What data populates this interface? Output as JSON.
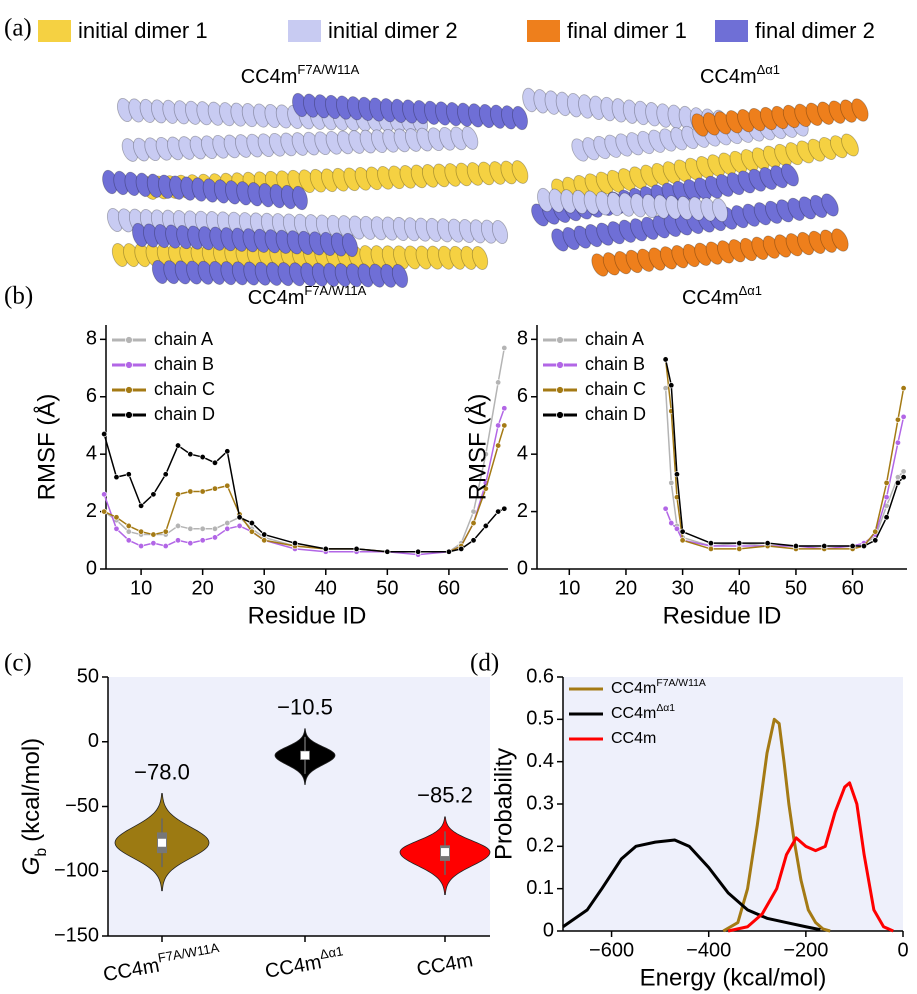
{
  "panel_labels": [
    "(a)",
    "(b)",
    "(c)",
    "(d)"
  ],
  "legend": [
    {
      "label": "initial dimer 1",
      "color": "#f5d142"
    },
    {
      "label": "initial dimer 2",
      "color": "#c8cbf2"
    },
    {
      "label": "final dimer 1",
      "color": "#ee7f1c"
    },
    {
      "label": "final dimer 2",
      "color": "#6f6fd6"
    }
  ],
  "structures": [
    {
      "title": "CC4m",
      "title_sup": "F7A/W11A"
    },
    {
      "title": "CC4m",
      "title_sup": "Δα1"
    }
  ],
  "chart_data": [
    {
      "type": "line",
      "title": "CC4m",
      "title_sup": "F7A/W11A",
      "xlabel": "Residue ID",
      "ylabel": "RMSF (Å)",
      "xlim": [
        4.3,
        69.6
      ],
      "ylim": [
        0,
        8.5
      ],
      "xticks": [
        10,
        20,
        30,
        40,
        50,
        60
      ],
      "yticks": [
        0,
        2,
        4,
        6,
        8
      ],
      "markers": true,
      "legend": "upper left",
      "x": [
        4,
        6,
        8,
        10,
        12,
        14,
        16,
        18,
        20,
        22,
        24,
        26,
        28,
        30,
        35,
        40,
        45,
        50,
        55,
        60,
        62,
        64,
        66,
        68,
        69
      ],
      "series": [
        {
          "name": "chain A",
          "color": "#b4b4b4",
          "values": [
            2.0,
            1.7,
            1.3,
            1.2,
            1.2,
            1.2,
            1.5,
            1.4,
            1.4,
            1.4,
            1.6,
            1.8,
            1.4,
            1.1,
            0.8,
            0.7,
            0.7,
            0.6,
            0.6,
            0.6,
            0.9,
            2.0,
            4.0,
            6.5,
            7.7
          ]
        },
        {
          "name": "chain B",
          "color": "#b266e6",
          "values": [
            2.6,
            1.4,
            1.0,
            0.8,
            0.9,
            0.8,
            1.0,
            0.9,
            1.0,
            1.1,
            1.4,
            1.5,
            1.3,
            1.0,
            0.7,
            0.6,
            0.6,
            0.6,
            0.5,
            0.6,
            0.8,
            1.6,
            3.0,
            5.0,
            5.6
          ]
        },
        {
          "name": "chain C",
          "color": "#a47a14",
          "values": [
            2.0,
            1.8,
            1.5,
            1.3,
            1.2,
            1.3,
            2.6,
            2.7,
            2.7,
            2.8,
            2.9,
            1.9,
            1.3,
            1.0,
            0.8,
            0.7,
            0.7,
            0.6,
            0.6,
            0.6,
            0.8,
            1.6,
            2.8,
            4.3,
            5.0
          ]
        },
        {
          "name": "chain D",
          "color": "#000000",
          "values": [
            4.7,
            3.2,
            3.3,
            2.2,
            2.6,
            3.3,
            4.3,
            4.0,
            3.9,
            3.7,
            4.1,
            1.8,
            1.6,
            1.2,
            0.9,
            0.7,
            0.7,
            0.6,
            0.6,
            0.6,
            0.7,
            1.0,
            1.5,
            2.0,
            2.1
          ]
        }
      ]
    },
    {
      "type": "line",
      "title": "CC4m",
      "title_sup": "Δα1",
      "xlabel": "Residue ID",
      "ylabel": "RMSF (Å)",
      "xlim": [
        4.3,
        69.6
      ],
      "ylim": [
        0,
        8.5
      ],
      "xticks": [
        10,
        20,
        30,
        40,
        50,
        60
      ],
      "yticks": [
        0,
        2,
        4,
        6,
        8
      ],
      "markers": true,
      "legend": "upper left",
      "x": [
        27,
        28,
        29,
        30,
        35,
        40,
        45,
        50,
        55,
        60,
        62,
        64,
        66,
        68,
        69
      ],
      "series": [
        {
          "name": "chain A",
          "color": "#b4b4b4",
          "values": [
            6.3,
            3.0,
            1.5,
            1.1,
            0.8,
            0.9,
            0.8,
            0.8,
            0.8,
            0.8,
            0.9,
            1.1,
            2.2,
            3.2,
            3.4
          ]
        },
        {
          "name": "chain B",
          "color": "#b266e6",
          "values": [
            2.1,
            1.6,
            1.4,
            1.0,
            0.8,
            0.8,
            0.8,
            0.8,
            0.7,
            0.8,
            0.9,
            1.2,
            2.5,
            4.4,
            5.3
          ]
        },
        {
          "name": "chain C",
          "color": "#a47a14",
          "values": [
            7.3,
            5.5,
            2.5,
            1.0,
            0.7,
            0.7,
            0.8,
            0.7,
            0.7,
            0.7,
            0.8,
            1.3,
            3.0,
            5.2,
            6.3
          ]
        },
        {
          "name": "chain D",
          "color": "#000000",
          "values": [
            7.3,
            6.4,
            3.3,
            1.3,
            0.9,
            0.9,
            0.9,
            0.8,
            0.8,
            0.8,
            0.8,
            1.0,
            1.8,
            3.0,
            3.2
          ]
        }
      ]
    },
    {
      "type": "violin",
      "ylabel": {
        "text": "G",
        "sub": "b",
        "unit": "(kcal/mol)"
      },
      "ylim": [
        -150,
        50
      ],
      "yticks": [
        {
          "value": -150,
          "label": "−150"
        },
        {
          "value": -100,
          "label": "−100"
        },
        {
          "value": -50,
          "label": "−50"
        },
        0,
        50
      ],
      "background": "#eef0fb",
      "categories": [
        {
          "text": "CC4m",
          "sup": "F7A/W11A"
        },
        {
          "text": "CC4m",
          "sup": "Δα1"
        },
        {
          "text": "CC4m"
        }
      ],
      "colors": [
        "#9c7a12",
        "#000000",
        "#ff0000"
      ],
      "values": [
        -78.0,
        -10.5,
        -85.2
      ],
      "value_labels": [
        "−78.0",
        "−10.5",
        "−85.2"
      ],
      "min": [
        -115,
        -33,
        -118
      ],
      "max": [
        -40,
        10,
        -58
      ],
      "q1": [
        -86,
        -14,
        -92
      ],
      "q3": [
        -70,
        -7,
        -80
      ]
    },
    {
      "type": "line",
      "xlabel": "Energy (kcal/mol)",
      "ylabel": "Probability",
      "xlim": [
        -700,
        0
      ],
      "ylim": [
        0,
        0.6
      ],
      "xticks": [
        {
          "value": -600,
          "label": "−600"
        },
        {
          "value": -400,
          "label": "−400"
        },
        {
          "value": -200,
          "label": "−200"
        },
        0
      ],
      "yticks": [
        0,
        0.1,
        0.2,
        0.3,
        0.4,
        0.5,
        0.6
      ],
      "markers": false,
      "legend": "upper left",
      "background": "#eef0fb",
      "series": [
        {
          "name": "CC4m",
          "name_sup": "F7A/W11A",
          "color": "#a47a14",
          "x": [
            -370,
            -340,
            -320,
            -300,
            -280,
            -265,
            -255,
            -245,
            -235,
            -225,
            -210,
            -195,
            -180,
            -165,
            -150
          ],
          "values": [
            0,
            0.02,
            0.1,
            0.25,
            0.42,
            0.5,
            0.49,
            0.4,
            0.3,
            0.22,
            0.12,
            0.05,
            0.02,
            0.005,
            0
          ]
        },
        {
          "name": "CC4m",
          "name_sup": "Δα1",
          "color": "#000000",
          "x": [
            -700,
            -650,
            -620,
            -580,
            -550,
            -510,
            -470,
            -440,
            -400,
            -360,
            -320,
            -280,
            -240,
            -200,
            -170
          ],
          "values": [
            0.01,
            0.05,
            0.1,
            0.17,
            0.2,
            0.21,
            0.215,
            0.2,
            0.15,
            0.09,
            0.05,
            0.03,
            0.02,
            0.01,
            0.003
          ]
        },
        {
          "name": "CC4m",
          "color": "#ff0000",
          "x": [
            -360,
            -320,
            -290,
            -260,
            -240,
            -220,
            -200,
            -180,
            -160,
            -140,
            -120,
            -110,
            -95,
            -80,
            -60,
            -40,
            -20
          ],
          "values": [
            0,
            0.01,
            0.04,
            0.1,
            0.18,
            0.22,
            0.2,
            0.19,
            0.2,
            0.28,
            0.34,
            0.35,
            0.3,
            0.18,
            0.05,
            0.01,
            0
          ]
        }
      ]
    }
  ]
}
